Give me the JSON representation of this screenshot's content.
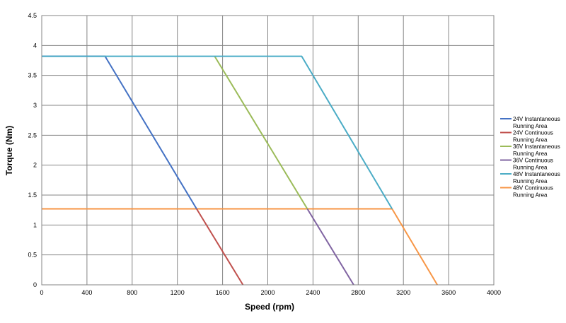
{
  "chart_data": {
    "type": "line",
    "xlabel": "Speed (rpm)",
    "ylabel": "Torque (Nm)",
    "xlim": [
      0,
      4000
    ],
    "ylim": [
      0,
      4.5
    ],
    "xticks": [
      "0",
      "400",
      "800",
      "1200",
      "1600",
      "2000",
      "2400",
      "2800",
      "3200",
      "3600",
      "4000"
    ],
    "yticks": [
      "0",
      "0.5",
      "1",
      "1.5",
      "2",
      "2.5",
      "3",
      "3.5",
      "4",
      "4.5"
    ],
    "grid": true,
    "legend_position": "right",
    "series": [
      {
        "name": "24V Instantaneous Running Area",
        "color": "#4472C4",
        "x": [
          0,
          560,
          1370
        ],
        "y": [
          3.82,
          3.82,
          1.27
        ]
      },
      {
        "name": "24V Continuous Running Area",
        "color": "#C0504D",
        "x": [
          1370,
          1780
        ],
        "y": [
          1.27,
          0
        ]
      },
      {
        "name": "36V Instantaneous Running Area",
        "color": "#9BBB59",
        "x": [
          1530,
          2350
        ],
        "y": [
          3.82,
          1.27
        ]
      },
      {
        "name": "36V Continuous Running Area",
        "color": "#8064A2",
        "x": [
          2350,
          2760
        ],
        "y": [
          1.27,
          0
        ]
      },
      {
        "name": "48V Instantaneous Running Area",
        "color": "#4BACC6",
        "x": [
          0,
          2300,
          3100
        ],
        "y": [
          3.82,
          3.82,
          1.27
        ]
      },
      {
        "name": "48V Continuous Running Area",
        "color": "#F79646",
        "x": [
          0,
          3100,
          3500
        ],
        "y": [
          1.27,
          1.27,
          0
        ]
      }
    ]
  }
}
